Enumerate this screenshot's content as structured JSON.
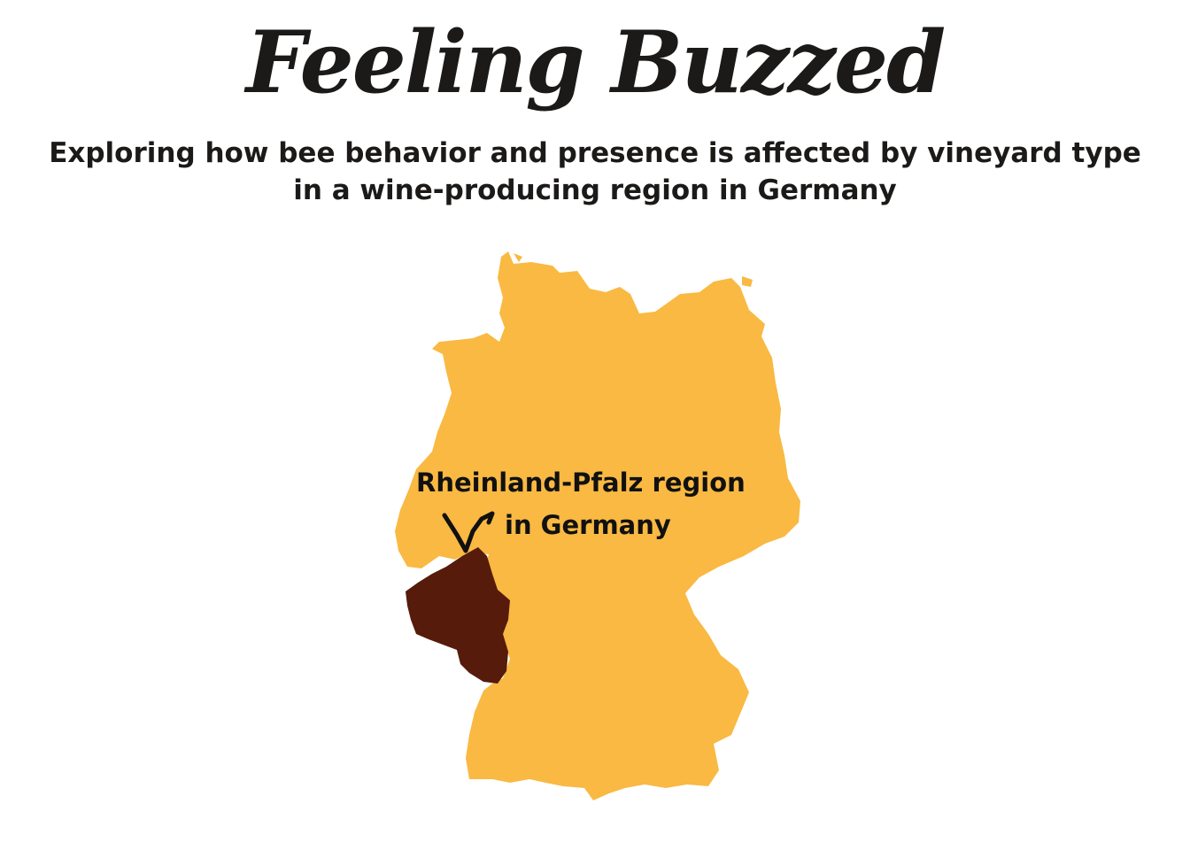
{
  "header": {
    "title": "Feeling Buzzed",
    "subtitle_line1": "Exploring how bee behavior and presence is affected by vineyard type",
    "subtitle_line2": "in a wine-producing region in Germany"
  },
  "map": {
    "country": "Germany",
    "highlighted_region": "Rheinland-Pfalz",
    "label_line1": "Rheinland-Pfalz region",
    "label_line2": "in Germany",
    "colors": {
      "country_fill": "#f9b942",
      "region_fill": "#561b0a",
      "check_mark": "#111111"
    }
  }
}
